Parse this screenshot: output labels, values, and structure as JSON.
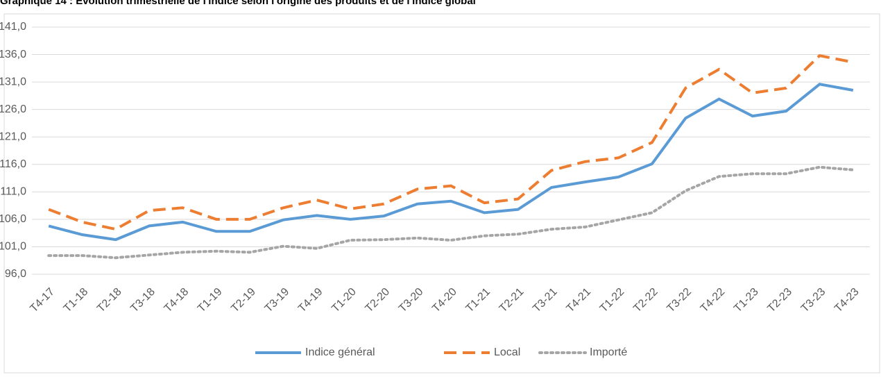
{
  "chart_data": {
    "type": "line",
    "title": "Graphique 14 : Evolution trimestrielle de l'indice selon l'origine des produits et de l'indice global",
    "categories": [
      "T4-17",
      "T1-18",
      "T2-18",
      "T3-18",
      "T4-18",
      "T1-19",
      "T2-19",
      "T3-19",
      "T4-19",
      "T1-20",
      "T2-20",
      "T3-20",
      "T4-20",
      "T1-21",
      "T2-21",
      "T3-21",
      "T4-21",
      "T1-22",
      "T2-22",
      "T3-22",
      "T4-22",
      "T1-23",
      "T2-23",
      "T3-23",
      "T4-23"
    ],
    "series": [
      {
        "name": "Indice général",
        "color": "#5b9bd5",
        "dash": "solid",
        "values": [
          104.8,
          103.2,
          102.3,
          104.8,
          105.5,
          103.8,
          103.8,
          105.9,
          106.7,
          106.0,
          106.6,
          108.8,
          109.3,
          107.2,
          107.8,
          111.8,
          112.8,
          113.7,
          116.1,
          124.4,
          127.9,
          124.8,
          125.7,
          130.6,
          129.5
        ]
      },
      {
        "name": "Local",
        "color": "#ed7d31",
        "dash": "dashed",
        "values": [
          107.8,
          105.5,
          104.2,
          107.6,
          108.1,
          106.0,
          106.0,
          108.1,
          109.5,
          107.9,
          108.8,
          111.5,
          112.1,
          109.0,
          109.7,
          114.9,
          116.5,
          117.2,
          120.0,
          129.9,
          133.3,
          129.0,
          129.9,
          135.8,
          134.6
        ]
      },
      {
        "name": "Importé",
        "color": "#a5a5a5",
        "dash": "dotted",
        "values": [
          99.4,
          99.4,
          99.0,
          99.5,
          100.0,
          100.2,
          100.0,
          101.1,
          100.7,
          102.2,
          102.3,
          102.6,
          102.2,
          103.0,
          103.3,
          104.2,
          104.6,
          105.9,
          107.2,
          111.2,
          113.8,
          114.3,
          114.3,
          115.5,
          115.0
        ]
      }
    ],
    "ylim": [
      96,
      141
    ],
    "yticks": [
      {
        "value": 96,
        "label": "96,0"
      },
      {
        "value": 101,
        "label": "101,0"
      },
      {
        "value": 106,
        "label": "106,0"
      },
      {
        "value": 111,
        "label": "111,0"
      },
      {
        "value": 116,
        "label": "116,0"
      },
      {
        "value": 121,
        "label": "121,0"
      },
      {
        "value": 126,
        "label": "126,0"
      },
      {
        "value": 131,
        "label": "131,0"
      },
      {
        "value": 136,
        "label": "136,0"
      },
      {
        "value": 141,
        "label": "141,0"
      }
    ],
    "grid": true,
    "legend": "bottom"
  }
}
